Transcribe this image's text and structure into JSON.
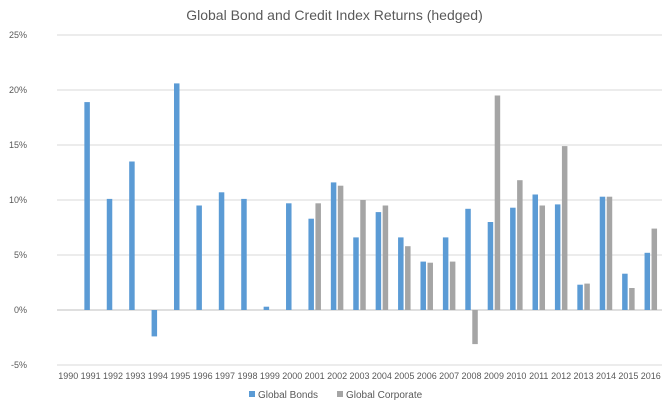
{
  "chart_data": {
    "type": "bar",
    "title": "Global Bond and Credit Index Returns (hedged)",
    "xlabel": "",
    "ylabel": "",
    "ylim": [
      -5,
      25
    ],
    "yticks": [
      "-5%",
      "0%",
      "5%",
      "10%",
      "15%",
      "20%",
      "25%"
    ],
    "ytick_values": [
      -5,
      0,
      5,
      10,
      15,
      20,
      25
    ],
    "grid": "horizontal",
    "legend_position": "bottom",
    "categories": [
      "1990",
      "1991",
      "1992",
      "1993",
      "1994",
      "1995",
      "1996",
      "1997",
      "1998",
      "1999",
      "2000",
      "2001",
      "2002",
      "2003",
      "2004",
      "2005",
      "2006",
      "2007",
      "2008",
      "2009",
      "2010",
      "2011",
      "2012",
      "2013",
      "2014",
      "2015",
      "2016"
    ],
    "series": [
      {
        "name": "Global Bonds",
        "color": "#5b9bd5",
        "values": [
          null,
          18.9,
          10.1,
          13.5,
          -2.4,
          20.6,
          9.5,
          10.7,
          10.1,
          0.3,
          9.7,
          8.3,
          11.6,
          6.6,
          8.9,
          6.6,
          4.4,
          6.6,
          9.2,
          8.0,
          9.3,
          10.5,
          9.6,
          2.3,
          10.3,
          3.3,
          5.2
        ]
      },
      {
        "name": "Global Corporate",
        "color": "#a5a5a5",
        "values": [
          null,
          null,
          null,
          null,
          null,
          null,
          null,
          null,
          null,
          null,
          null,
          9.7,
          11.3,
          10.0,
          9.5,
          5.8,
          4.3,
          4.4,
          -3.1,
          19.5,
          11.8,
          9.5,
          14.9,
          2.4,
          10.3,
          2.0,
          7.4
        ]
      }
    ]
  }
}
